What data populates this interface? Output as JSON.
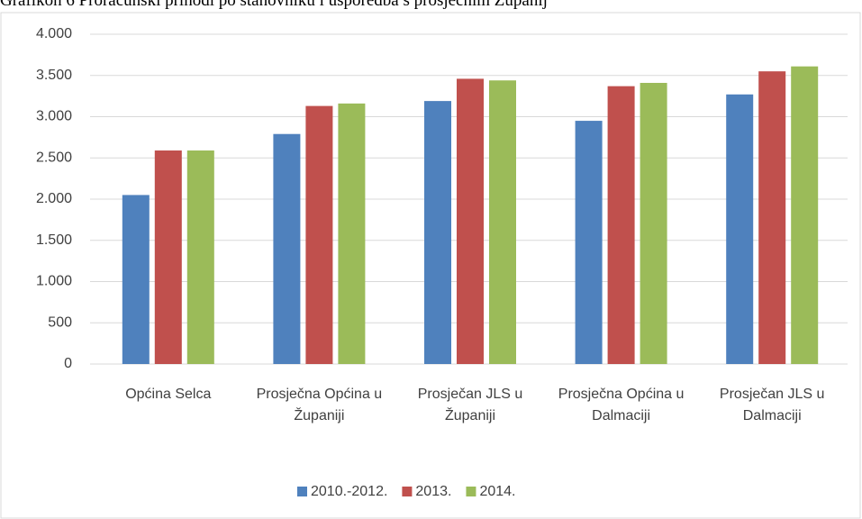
{
  "chart_data": {
    "type": "bar",
    "title": "Grafikon 6 Proračunski prihodi po stanovniku i usporedba s prosječnim Županij",
    "categories": [
      "Općina Selca",
      "Prosječna Općina u Županiji",
      "Prosječan JLS u Županiji",
      "Prosječna Općina u Dalmaciji",
      "Prosječan JLS u Dalmaciji"
    ],
    "series": [
      {
        "name": "2010.-2012.",
        "color": "#4f81bd",
        "values": [
          2050,
          2790,
          3190,
          2950,
          3270
        ]
      },
      {
        "name": "2013.",
        "color": "#c0504d",
        "values": [
          2590,
          3130,
          3460,
          3370,
          3550
        ]
      },
      {
        "name": "2014.",
        "color": "#9bbb59",
        "values": [
          2590,
          3160,
          3440,
          3410,
          3610
        ]
      }
    ],
    "ylim": [
      0,
      4000
    ],
    "yticks": [
      0,
      500,
      {
        "value": 1000,
        "label": "1.000"
      },
      {
        "value": 1500,
        "label": "1.500"
      },
      {
        "value": 2000,
        "label": "2.000"
      },
      {
        "value": 2500,
        "label": "2.500"
      },
      {
        "value": 3000,
        "label": "3.000"
      },
      {
        "value": 3500,
        "label": "3.500"
      },
      {
        "value": 4000,
        "label": "4.000"
      }
    ],
    "grid": true,
    "legend": "bottom"
  }
}
